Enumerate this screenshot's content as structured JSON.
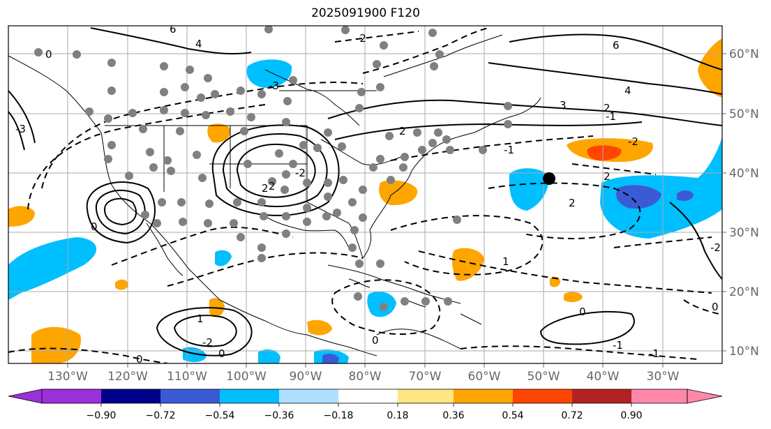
{
  "title": "2025091900 F120",
  "longitude_labels": [
    "130°W",
    "120°W",
    "110°W",
    "100°W",
    "90°W",
    "80°W",
    "70°W",
    "60°W",
    "50°W",
    "40°W",
    "30°W"
  ],
  "latitude_labels": [
    "60°N",
    "50°N",
    "40°N",
    "30°N",
    "20°N",
    "10°N"
  ],
  "colorbar": {
    "tick_labels": [
      "−0.90",
      "−0.72",
      "−0.54",
      "−0.36",
      "−0.18",
      "0.18",
      "0.36",
      "0.54",
      "0.72",
      "0.90"
    ],
    "colors": [
      "#9b30d9",
      "#00008b",
      "#3b5bd6",
      "#00bfff",
      "#aee0ff",
      "#ffffff",
      "#ffe680",
      "#ffa500",
      "#ff4500",
      "#b22222",
      "#ff88aa"
    ]
  },
  "contour_labels": [
    "0",
    "2",
    "4",
    "6",
    "-1",
    "-2",
    "-3",
    "0",
    "2",
    "-2",
    "4",
    "6",
    "3",
    "2",
    "-1",
    "-2",
    "2",
    "0",
    "1",
    "-1",
    "2",
    "-2",
    "0",
    "-3",
    "0",
    "1",
    "2",
    "0",
    "-1",
    "-2",
    "0"
  ],
  "legend_colors": {
    "land_border": "#000000",
    "contour": "#000000",
    "station_marker": "#808080",
    "highlight_marker": "#000000"
  }
}
